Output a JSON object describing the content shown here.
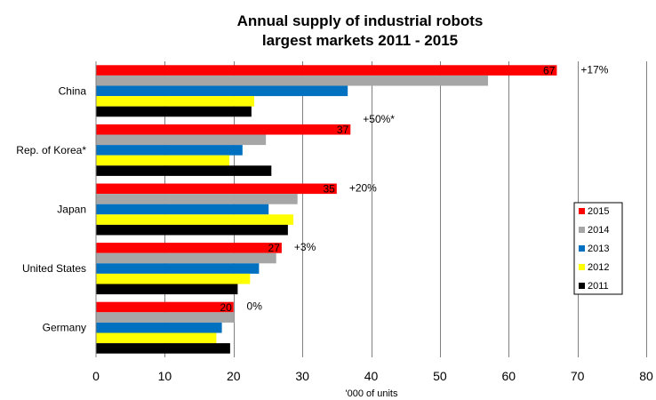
{
  "chart_data": {
    "type": "bar",
    "orientation": "horizontal",
    "title": [
      "Annual supply of industrial robots",
      "largest markets 2011 - 2015"
    ],
    "xlabel": "'000 of units",
    "ylabel": "",
    "xlim": [
      0,
      80
    ],
    "xticks": [
      0,
      10,
      20,
      30,
      40,
      50,
      60,
      70,
      80
    ],
    "grid": "vertical",
    "legend_position": "right",
    "categories": [
      "China",
      "Rep. of Korea*",
      "Japan",
      "United States",
      "Germany"
    ],
    "series": [
      {
        "name": "2015",
        "color": "#ff0000",
        "values": [
          67,
          37,
          35,
          27,
          20
        ]
      },
      {
        "name": "2014",
        "color": "#a6a6a6",
        "values": [
          57,
          24.7,
          29.3,
          26.2,
          20.1
        ]
      },
      {
        "name": "2013",
        "color": "#0070c0",
        "values": [
          36.6,
          21.3,
          25.1,
          23.7,
          18.3
        ]
      },
      {
        "name": "2012",
        "color": "#ffff00",
        "values": [
          23,
          19.4,
          28.7,
          22.4,
          17.5
        ]
      },
      {
        "name": "2011",
        "color": "#000000",
        "values": [
          22.6,
          25.5,
          27.9,
          20.6,
          19.5
        ]
      }
    ],
    "data_labels": [
      "67",
      "37",
      "35",
      "27",
      "20"
    ],
    "annotations": [
      "+17%",
      "+50%*",
      "+20%",
      "+3%",
      "0%"
    ],
    "legend_order": [
      "2015",
      "2014",
      "2013",
      "2012",
      "2011"
    ]
  }
}
